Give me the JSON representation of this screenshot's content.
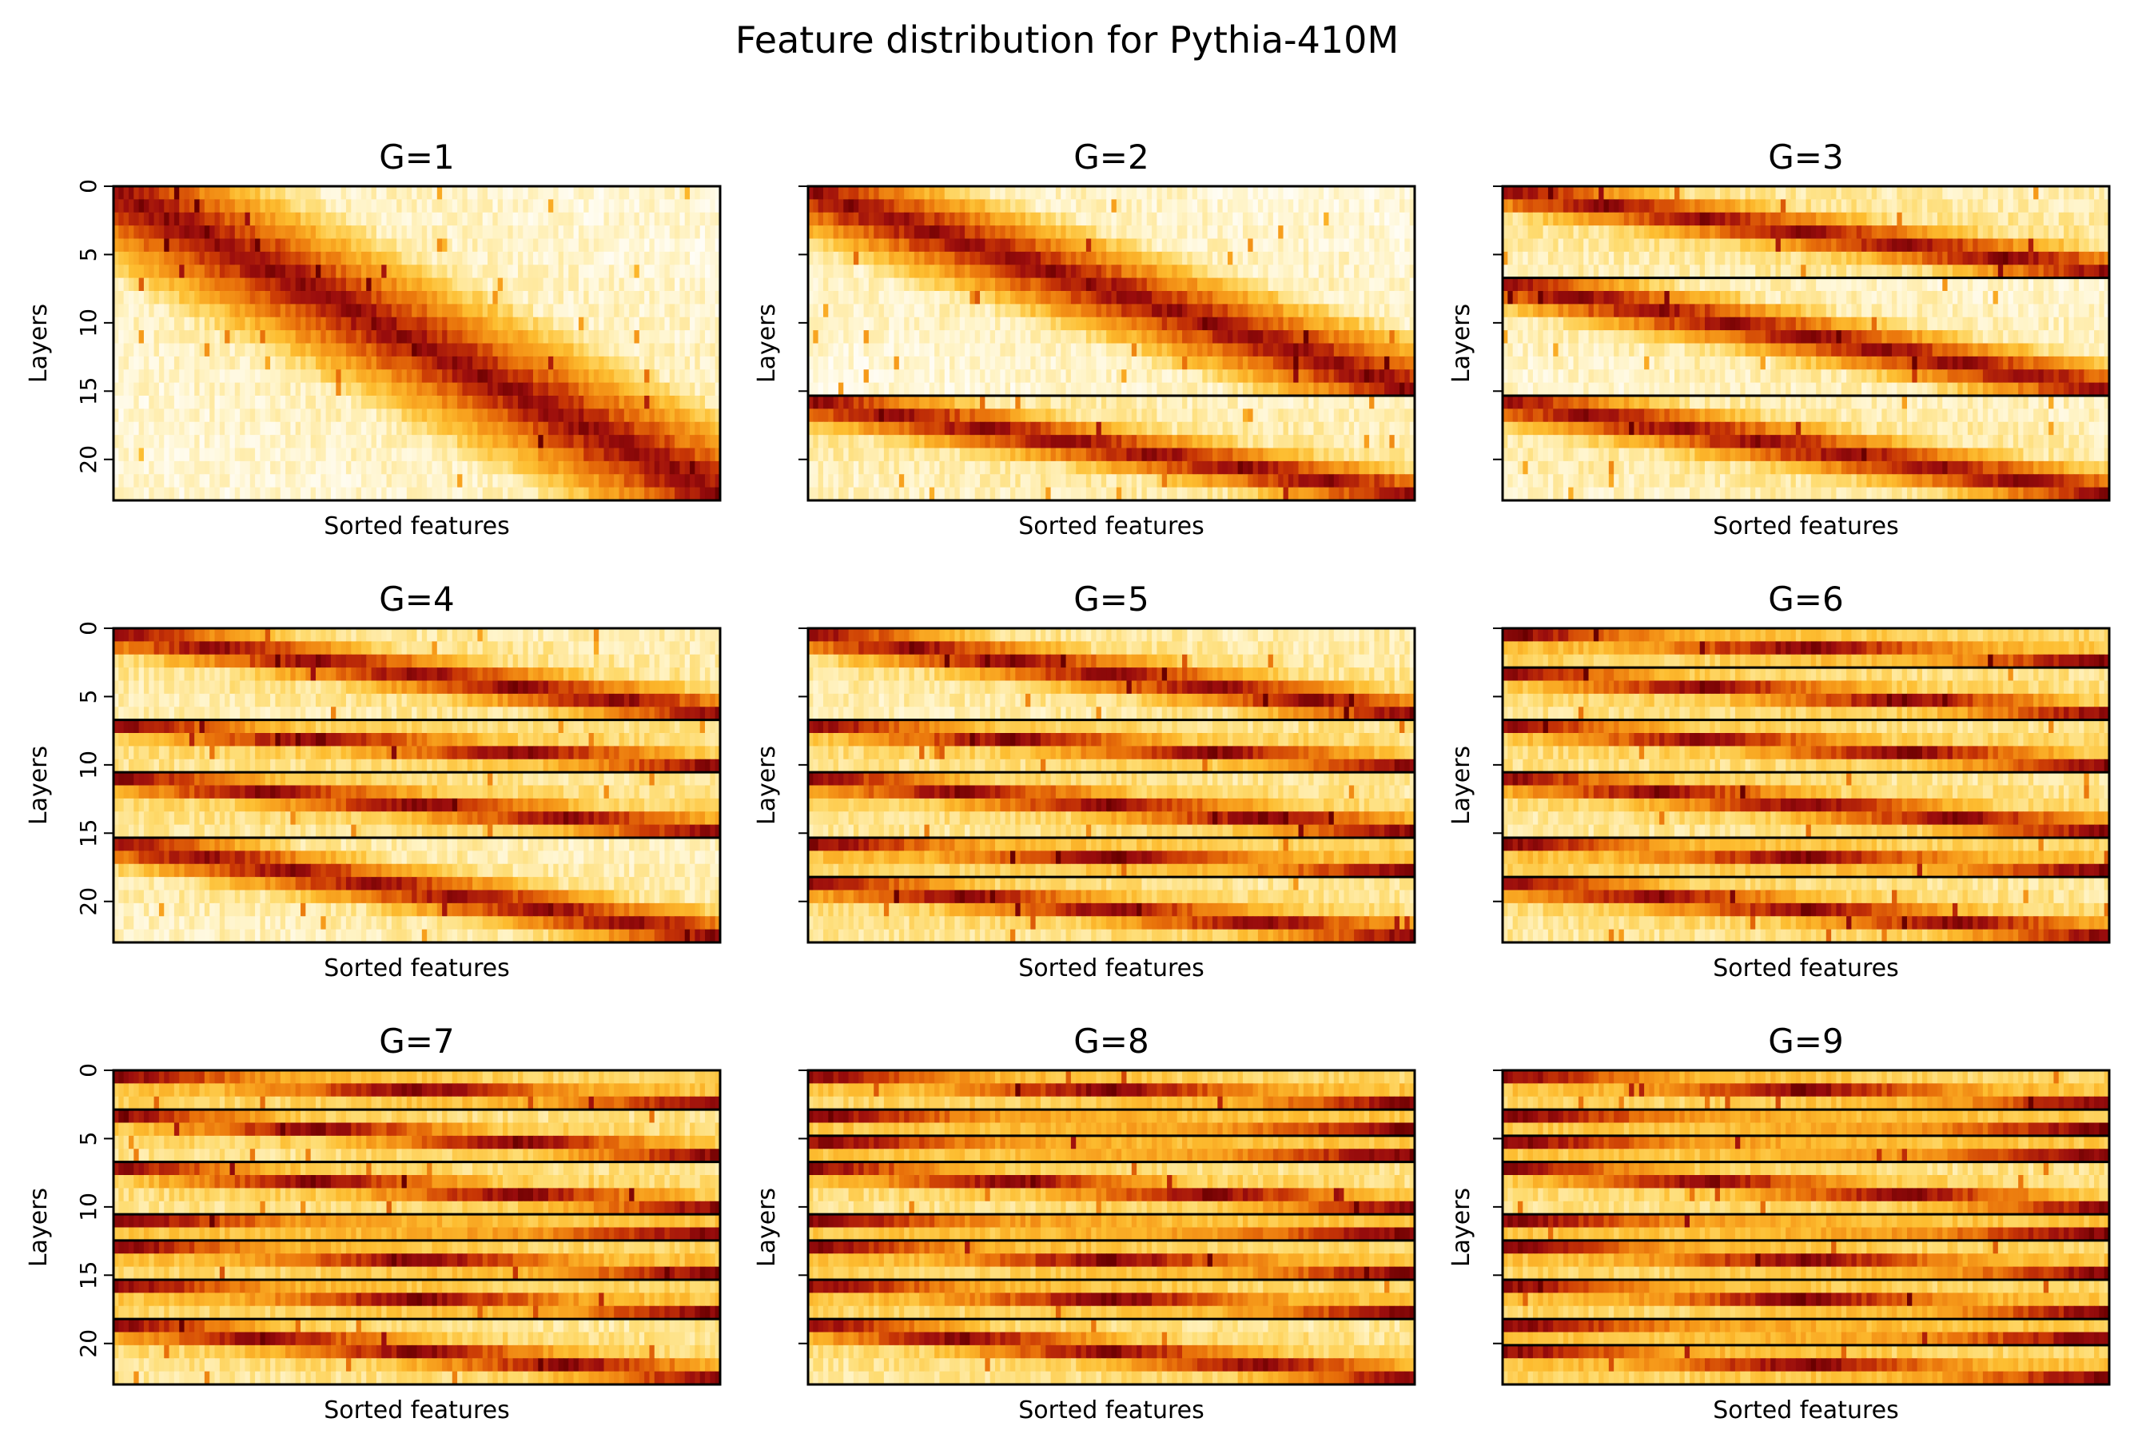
{
  "figure": {
    "title": "Feature distribution for Pythia-410M"
  },
  "chart_data": {
    "type": "heatmap",
    "title": "Feature distribution for Pythia-410M",
    "xlabel": "Sorted features",
    "ylabel": "Layers",
    "ytick_labels": [
      "0",
      "5",
      "10",
      "15",
      "20"
    ],
    "ytick_values": [
      0,
      5,
      10,
      15,
      20
    ],
    "ylim": [
      0,
      23
    ],
    "n_layers": 24,
    "colormap": [
      "#ffffff",
      "#fff3c4",
      "#fedb6f",
      "#fdbd30",
      "#f69a1a",
      "#e8700a",
      "#c83605",
      "#9b0d0d",
      "#6a0000"
    ],
    "grid": false,
    "panels": [
      {
        "title": "G=1",
        "group_boundaries": []
      },
      {
        "title": "G=2",
        "group_boundaries": [
          16
        ]
      },
      {
        "title": "G=3",
        "group_boundaries": [
          7,
          16
        ]
      },
      {
        "title": "G=4",
        "group_boundaries": [
          7,
          11,
          16
        ]
      },
      {
        "title": "G=5",
        "group_boundaries": [
          7,
          11,
          16,
          19
        ]
      },
      {
        "title": "G=6",
        "group_boundaries": [
          3,
          7,
          11,
          16,
          19
        ]
      },
      {
        "title": "G=7",
        "group_boundaries": [
          3,
          7,
          11,
          13,
          16,
          19
        ]
      },
      {
        "title": "G=8",
        "group_boundaries": [
          3,
          5,
          7,
          11,
          13,
          16,
          19
        ]
      },
      {
        "title": "G=9",
        "group_boundaries": [
          3,
          5,
          7,
          11,
          13,
          16,
          19,
          21
        ]
      }
    ]
  }
}
